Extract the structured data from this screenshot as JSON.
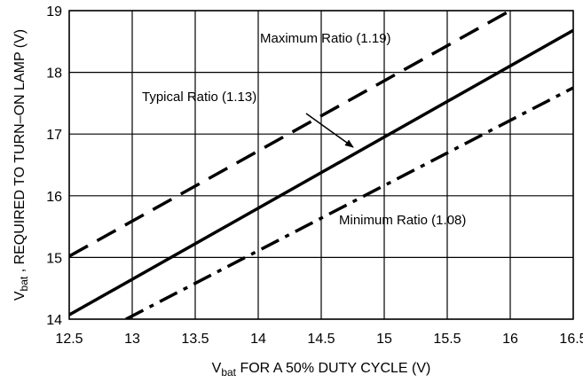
{
  "chart_data": {
    "type": "line",
    "xlabel": {
      "main": "V",
      "sub": "bat",
      "rest": " FOR A 50% DUTY CYCLE (V)"
    },
    "ylabel": {
      "main": "V",
      "sub": "bat",
      "rest": " , REQUIRED TO TURN–ON LAMP (V)"
    },
    "xlim": [
      12.5,
      16.5
    ],
    "ylim": [
      14,
      19
    ],
    "x_ticks": [
      "12.5",
      "13",
      "13.5",
      "14",
      "14.5",
      "15",
      "15.5",
      "16",
      "16.5"
    ],
    "y_ticks": [
      "14",
      "15",
      "16",
      "17",
      "18",
      "19"
    ],
    "grid": true,
    "series": [
      {
        "name": "Maximum Ratio (1.19)",
        "style": "dashed",
        "x": [
          12.5,
          16
        ],
        "y": [
          15.02,
          19.0
        ]
      },
      {
        "name": "Typical Ratio (1.13)",
        "style": "solid",
        "x": [
          12.5,
          16.5
        ],
        "y": [
          14.07,
          18.68
        ]
      },
      {
        "name": "Minimum Ratio (1.08)",
        "style": "dashdot",
        "x": [
          12.95,
          16.5
        ],
        "y": [
          14.0,
          17.75
        ]
      }
    ],
    "annotations": [
      "Maximum Ratio (1.19)",
      "Typical Ratio (1.13)",
      "Minimum Ratio (1.08)"
    ]
  }
}
